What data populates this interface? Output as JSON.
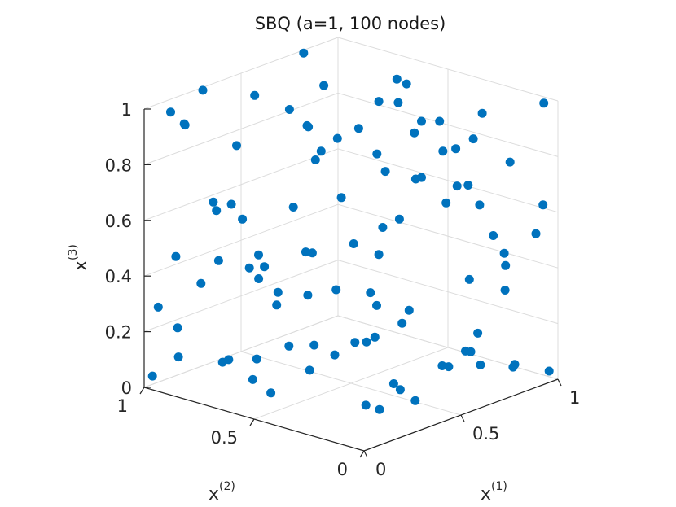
{
  "chart_data": {
    "type": "scatter",
    "title": "SBQ (a=1, 100 nodes)",
    "axis_labels": {
      "x1": {
        "base": "x",
        "sup": "(1)"
      },
      "x2": {
        "base": "x",
        "sup": "(2)"
      },
      "x3": {
        "base": "x",
        "sup": "(3)"
      }
    },
    "x1_ticks": [
      "0",
      "0.5",
      "1"
    ],
    "x2_ticks": [
      "0",
      "0.5",
      "1"
    ],
    "x3_ticks": [
      "0",
      "0.2",
      "0.4",
      "0.6",
      "0.8",
      "1"
    ],
    "xlim": [
      0,
      1
    ],
    "ylim": [
      0,
      1
    ],
    "zlim": [
      0,
      1
    ],
    "grid": true,
    "marker_color": "#0072BD",
    "points_x1_x2_x3": [
      [
        0.02,
        0.98,
        0.04
      ],
      [
        0.12,
        0.95,
        0.09
      ],
      [
        0.15,
        0.62,
        0.15
      ],
      [
        0.3,
        0.88,
        0.05
      ],
      [
        0.22,
        0.7,
        0.04
      ],
      [
        0.2,
        0.82,
        0.08
      ],
      [
        0.4,
        0.6,
        0.05
      ],
      [
        0.52,
        0.8,
        0.06
      ],
      [
        0.62,
        0.68,
        0.03
      ],
      [
        0.65,
        0.8,
        0.03
      ],
      [
        0.75,
        0.65,
        0.05
      ],
      [
        0.85,
        0.7,
        0.03
      ],
      [
        0.95,
        0.78,
        0.1
      ],
      [
        0.8,
        0.35,
        0.02
      ],
      [
        0.55,
        0.35,
        0.02
      ],
      [
        1.0,
        0.04,
        0.02
      ],
      [
        0.95,
        0.16,
        0.02
      ],
      [
        0.85,
        0.22,
        0.04
      ],
      [
        0.72,
        0.25,
        0.06
      ],
      [
        0.75,
        0.2,
        0.12
      ],
      [
        0.8,
        0.22,
        0.1
      ],
      [
        0.4,
        0.12,
        0.05
      ],
      [
        0.25,
        0.15,
        0.05
      ],
      [
        0.3,
        0.1,
        0.12
      ],
      [
        0.1,
        0.08,
        0.12
      ],
      [
        0.18,
        0.9,
        0.35
      ],
      [
        0.05,
        0.9,
        0.48
      ],
      [
        0.45,
        0.95,
        0.5
      ],
      [
        0.35,
        0.98,
        0.55
      ],
      [
        0.3,
        0.95,
        0.6
      ],
      [
        0.18,
        0.82,
        0.45
      ],
      [
        0.25,
        0.7,
        0.48
      ],
      [
        0.28,
        0.7,
        0.43
      ],
      [
        0.38,
        0.6,
        0.48
      ],
      [
        0.3,
        0.5,
        0.52
      ],
      [
        0.18,
        0.48,
        0.72
      ],
      [
        0.45,
        0.5,
        0.68
      ],
      [
        0.55,
        0.4,
        0.57
      ],
      [
        0.5,
        0.28,
        0.64
      ],
      [
        0.72,
        0.4,
        0.7
      ],
      [
        0.82,
        0.35,
        0.6
      ],
      [
        0.9,
        0.32,
        0.65
      ],
      [
        0.88,
        0.25,
        0.6
      ],
      [
        0.78,
        0.1,
        0.55
      ],
      [
        0.6,
        0.05,
        0.45
      ],
      [
        0.75,
        0.02,
        0.38
      ],
      [
        0.9,
        0.15,
        0.4
      ],
      [
        0.95,
        0.2,
        0.42
      ],
      [
        1.0,
        0.1,
        0.5
      ],
      [
        0.98,
        0.05,
        0.62
      ],
      [
        0.15,
        0.95,
        0.92
      ],
      [
        0.08,
        0.95,
        0.98
      ],
      [
        0.12,
        0.92,
        0.93
      ],
      [
        0.28,
        0.98,
        1.0
      ],
      [
        0.4,
        0.85,
        0.98
      ],
      [
        0.25,
        0.8,
        0.85
      ],
      [
        0.5,
        0.7,
        0.88
      ],
      [
        0.55,
        0.68,
        0.78
      ],
      [
        0.6,
        0.65,
        0.82
      ],
      [
        0.7,
        0.55,
        0.95
      ],
      [
        0.8,
        0.55,
        0.92
      ],
      [
        0.85,
        0.6,
        0.98
      ],
      [
        0.75,
        0.4,
        0.9
      ],
      [
        0.9,
        0.45,
        0.85
      ],
      [
        0.95,
        0.3,
        0.9
      ],
      [
        0.7,
        0.2,
        0.86
      ],
      [
        0.6,
        0.3,
        0.92
      ],
      [
        0.45,
        0.3,
        0.82
      ],
      [
        0.62,
        0.05,
        0.95
      ],
      [
        0.52,
        0.1,
        0.92
      ],
      [
        0.8,
        0.98,
        1.0
      ],
      [
        0.5,
        0.78,
        0.92
      ],
      [
        0.45,
        0.65,
        0.9
      ],
      [
        0.7,
        0.8,
        0.95
      ],
      [
        0.95,
        0.02,
        1.0
      ],
      [
        0.98,
        0.2,
        0.74
      ],
      [
        0.5,
        0.92,
        0.28
      ],
      [
        0.4,
        0.75,
        0.25
      ],
      [
        0.35,
        0.7,
        0.32
      ],
      [
        0.6,
        0.5,
        0.3
      ],
      [
        0.48,
        0.55,
        0.33
      ],
      [
        0.65,
        0.4,
        0.2
      ],
      [
        0.55,
        0.28,
        0.3
      ],
      [
        0.7,
        0.1,
        0.22
      ],
      [
        0.8,
        0.02,
        0.1
      ],
      [
        0.35,
        0.35,
        0.22
      ],
      [
        0.22,
        0.45,
        0.4
      ],
      [
        0.4,
        0.4,
        0.55
      ],
      [
        0.28,
        0.85,
        0.62
      ],
      [
        0.15,
        0.98,
        0.18
      ],
      [
        0.05,
        0.98,
        0.28
      ],
      [
        0.9,
        0.6,
        0.95
      ],
      [
        0.6,
        0.75,
        0.72
      ],
      [
        0.2,
        0.6,
        0.02
      ],
      [
        0.52,
        0.98,
        0.3
      ],
      [
        0.7,
        0.55,
        0.4
      ],
      [
        0.92,
        0.55,
        0.62
      ],
      [
        0.88,
        0.8,
        0.75
      ],
      [
        0.35,
        0.25,
        0.92
      ],
      [
        0.65,
        0.15,
        0.75
      ]
    ]
  }
}
